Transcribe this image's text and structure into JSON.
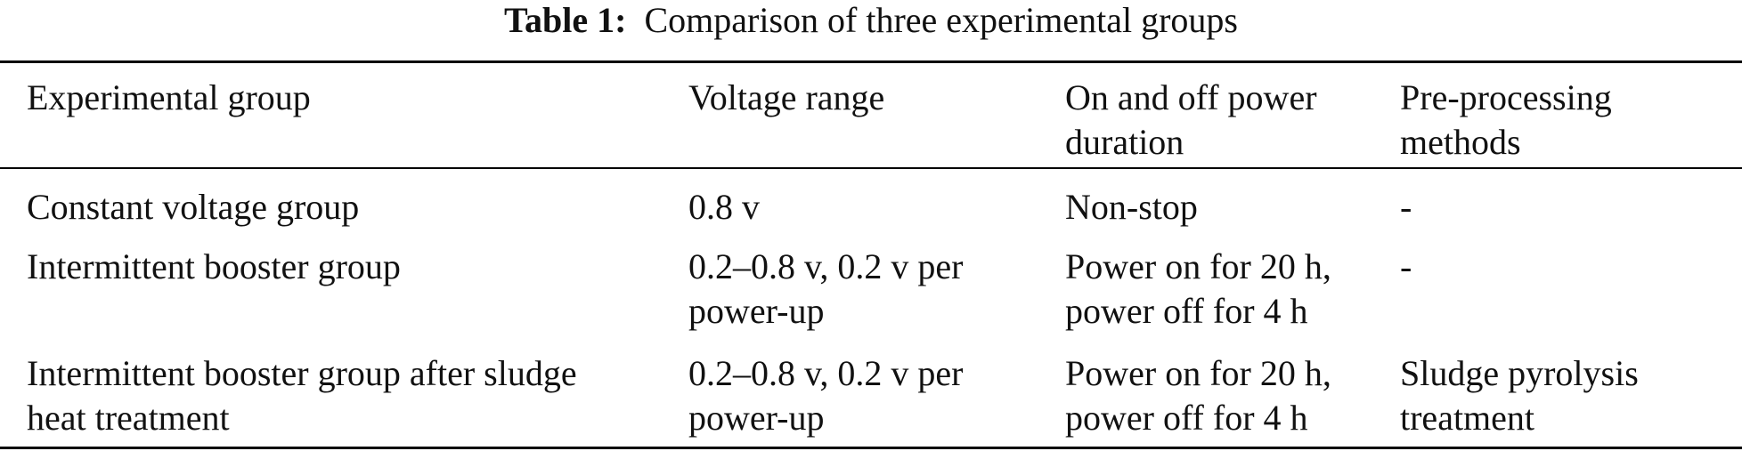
{
  "caption": {
    "label": "Table 1:",
    "text": "Comparison of three experimental groups"
  },
  "table": {
    "headers": [
      [
        "Experimental group"
      ],
      [
        "Voltage range"
      ],
      [
        "On and off power",
        "duration"
      ],
      [
        "Pre-processing",
        "methods"
      ]
    ],
    "rows": [
      [
        [
          "Constant voltage group"
        ],
        [
          "0.8 v"
        ],
        [
          "Non-stop"
        ],
        [
          "-"
        ]
      ],
      [
        [
          "Intermittent booster group"
        ],
        [
          "0.2–0.8 v, 0.2 v per",
          "power-up"
        ],
        [
          "Power on for 20 h,",
          "power off for 4 h"
        ],
        [
          "-"
        ]
      ],
      [
        [
          "Intermittent booster group after sludge",
          "heat treatment"
        ],
        [
          "0.2–0.8 v, 0.2 v per",
          "power-up"
        ],
        [
          "Power on for 20 h,",
          "power off for 4 h"
        ],
        [
          "Sludge pyrolysis",
          "treatment"
        ]
      ]
    ]
  }
}
